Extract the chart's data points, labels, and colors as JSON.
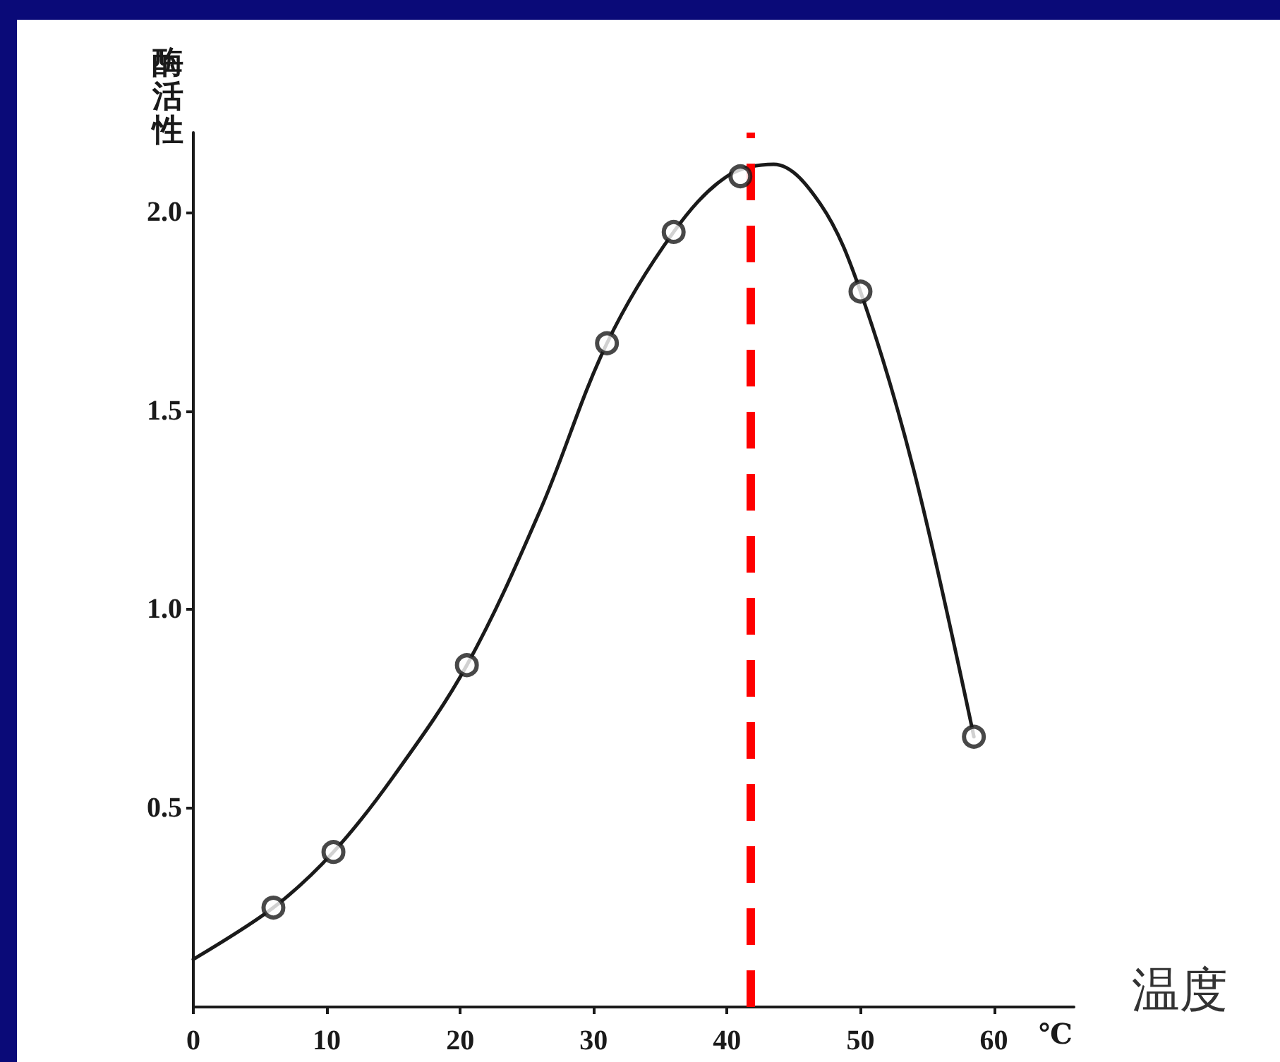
{
  "chart_data": {
    "type": "scatter",
    "xlabel": "温度",
    "ylabel": "酶活性",
    "annotations": [
      "℃"
    ],
    "xlim": [
      0,
      66
    ],
    "ylim": [
      0,
      2.2
    ],
    "xticks": [
      0,
      10,
      20,
      30,
      40,
      50,
      60
    ],
    "yticks": [
      {
        "value": 0.5,
        "label": "0.5"
      },
      {
        "value": 1,
        "label": "1.0"
      },
      {
        "value": 1.5,
        "label": "1.5"
      },
      {
        "value": 2,
        "label": "2.0"
      }
    ],
    "grid": false,
    "marker": "circle",
    "series": [
      {
        "color": "#1a1a1a",
        "x": [
          6,
          10.5,
          20.5,
          31,
          36,
          41,
          50,
          58.5
        ],
        "values": [
          0.25,
          0.39,
          0.86,
          1.67,
          1.95,
          2.09,
          1.8,
          0.68
        ]
      },
      {
        "type": "line",
        "color": "#1a1a1a",
        "marker": "none",
        "x": [
          0,
          6,
          10.5,
          15,
          20.5,
          26,
          31,
          36,
          40,
          43.5,
          47,
          50,
          54,
          58.5
        ],
        "values": [
          0.12,
          0.25,
          0.39,
          0.58,
          0.86,
          1.25,
          1.67,
          1.95,
          2.09,
          2.12,
          2.02,
          1.8,
          1.35,
          0.68
        ]
      }
    ],
    "ref_lines": [
      {
        "axis": "x",
        "value": 41.8,
        "label": null,
        "color": "#ff0000",
        "line_style": "dashed"
      }
    ]
  }
}
